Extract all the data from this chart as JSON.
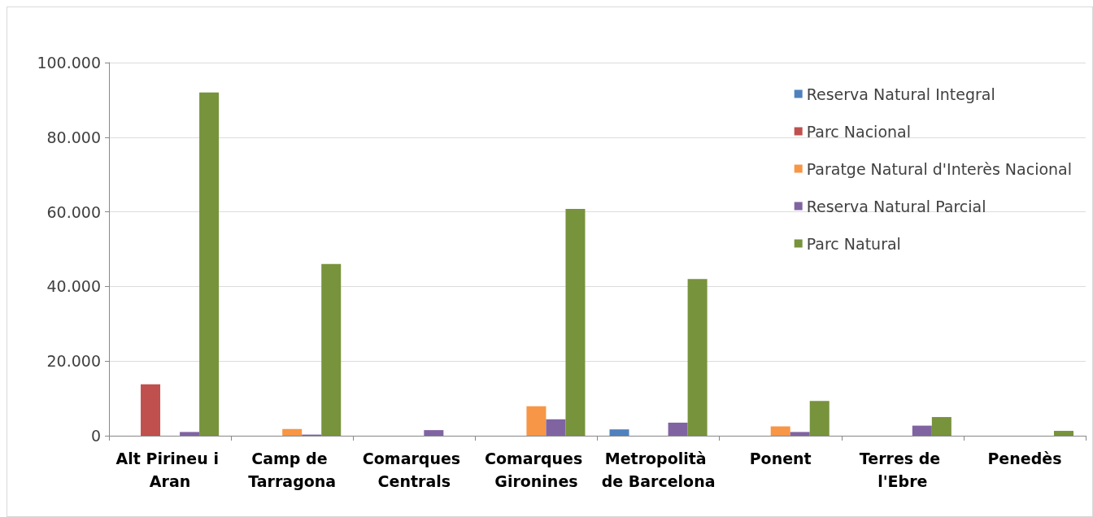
{
  "chart_data": {
    "type": "bar",
    "categories": [
      "Alt Pirineu i Aran",
      "Camp de Tarragona",
      "Comarques Centrals",
      "Comarques Gironines",
      "Metropolità de Barcelona",
      "Ponent",
      "Terres de l'Ebre",
      "Penedès"
    ],
    "series": [
      {
        "name": "Reserva Natural Integral",
        "color": "#4f81bd",
        "values": [
          null,
          null,
          null,
          null,
          1700,
          null,
          null,
          null
        ]
      },
      {
        "name": "Parc Nacional",
        "color": "#c0504d",
        "values": [
          13800,
          null,
          null,
          null,
          null,
          null,
          null,
          null
        ]
      },
      {
        "name": "Paratge Natural d'Interès Nacional",
        "color": "#f79646",
        "values": [
          null,
          1800,
          null,
          7900,
          null,
          2500,
          null,
          null
        ]
      },
      {
        "name": "Reserva Natural Parcial",
        "color": "#8064a2",
        "values": [
          1000,
          300,
          1500,
          4400,
          3500,
          1000,
          2700,
          null
        ]
      },
      {
        "name": "Parc Natural",
        "color": "#77933c",
        "values": [
          92000,
          46000,
          null,
          60800,
          42000,
          9300,
          5000,
          1300
        ]
      }
    ],
    "ylim": [
      0,
      100000
    ],
    "yticks": [
      {
        "value": 0,
        "label": "0"
      },
      {
        "value": 20000,
        "label": "20.000"
      },
      {
        "value": 40000,
        "label": "40.000"
      },
      {
        "value": 60000,
        "label": "60.000"
      },
      {
        "value": 80000,
        "label": "80.000"
      },
      {
        "value": 100000,
        "label": "100.000"
      }
    ],
    "grid": "y",
    "legend": "top right"
  }
}
